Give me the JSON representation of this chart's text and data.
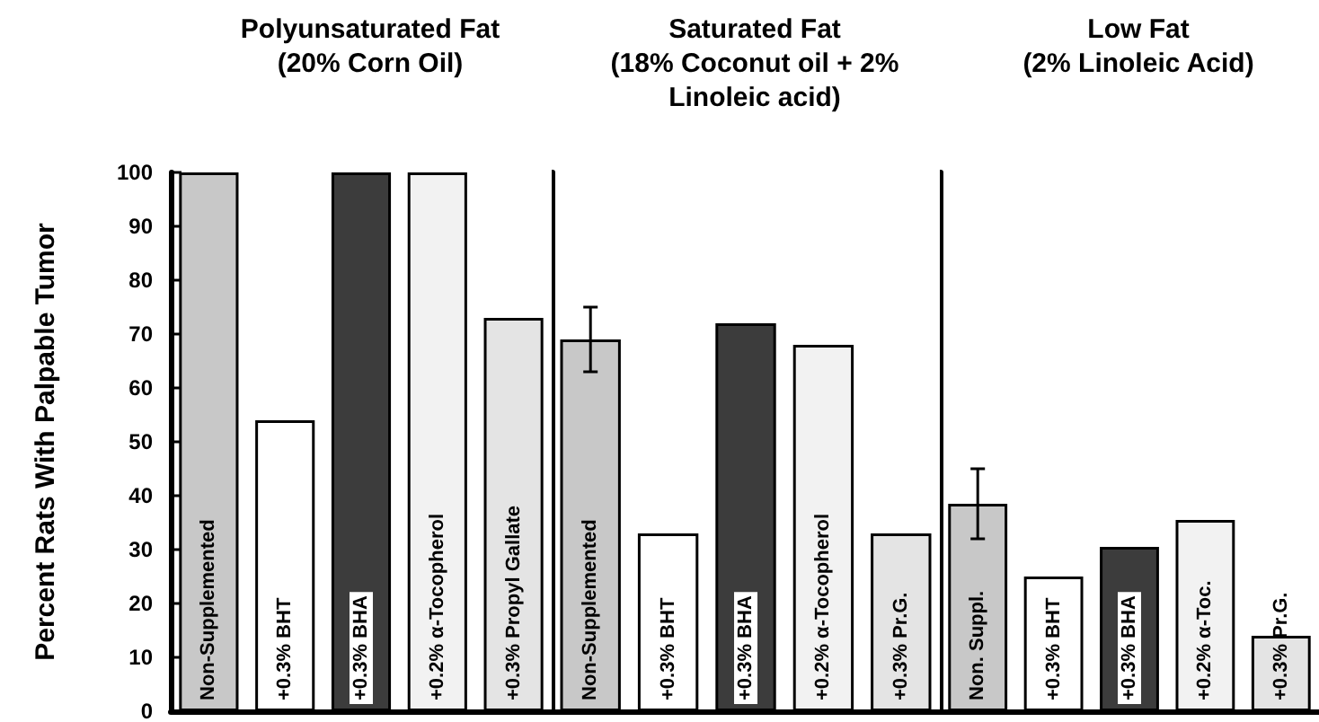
{
  "chart_data": [
    {
      "type": "bar",
      "title": "Polyunsaturated Fat\n(20% Corn Oil)",
      "ylabel": "Percent Rats With Palpable Tumor",
      "categories": [
        "Non-Supplemented",
        "+0.3% BHT",
        "+0.3% BHA",
        "+0.2% α-Tocopherol",
        "+0.3% Propyl Gallate"
      ],
      "values": [
        100,
        54,
        100,
        100,
        73
      ],
      "colors": [
        "#c8c8c8",
        "#ffffff",
        "#3c3c3c",
        "#f2f2f2",
        "#e4e4e4"
      ],
      "ylim": [
        0,
        100
      ],
      "yticks": [
        0,
        10,
        20,
        30,
        40,
        50,
        60,
        70,
        80,
        90,
        100
      ],
      "grid": false
    },
    {
      "type": "bar",
      "title": "Saturated Fat\n(18% Coconut oil + 2%\nLinoleic acid)",
      "categories": [
        "Non-Supplemented",
        "+0.3% BHT",
        "+0.3% BHA",
        "+0.2% α-Tocopherol",
        "+0.3% Pr.G."
      ],
      "values": [
        69,
        33,
        72,
        68,
        33
      ],
      "errors": [
        [
          63,
          75
        ],
        null,
        null,
        null,
        null
      ],
      "colors": [
        "#c8c8c8",
        "#ffffff",
        "#3c3c3c",
        "#f2f2f2",
        "#e4e4e4"
      ],
      "ylim": [
        0,
        100
      ],
      "yticks": [
        0,
        10,
        20,
        30,
        40,
        50,
        60,
        70,
        80,
        90,
        100
      ],
      "tick_labels": "x",
      "grid": false
    },
    {
      "type": "bar",
      "title": "Low Fat\n(2% Linoleic Acid)",
      "categories": [
        "Non. Suppl.",
        "+0.3% BHT",
        "+0.3% BHA",
        "+0.2% α-Toc.",
        "+0.3% Pr.G."
      ],
      "values": [
        38.5,
        25,
        30.5,
        35.5,
        14
      ],
      "errors": [
        [
          32,
          45
        ],
        null,
        null,
        null,
        null
      ],
      "colors": [
        "#c8c8c8",
        "#ffffff",
        "#3c3c3c",
        "#f2f2f2",
        "#e4e4e4"
      ],
      "ylim": [
        0,
        100
      ],
      "yticks": [
        0,
        10,
        20,
        30,
        40,
        50,
        60,
        70,
        80,
        90,
        100
      ],
      "tick_labels": "x",
      "grid": false
    }
  ]
}
